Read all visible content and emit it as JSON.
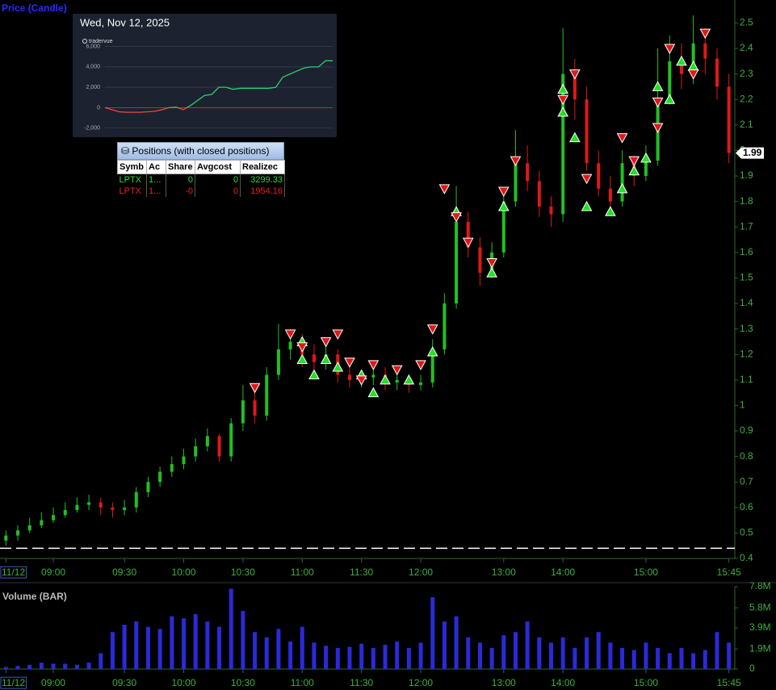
{
  "chart_data": [
    {
      "type": "candlestick",
      "title": "Price (Candle)",
      "categories": [
        "11/12",
        null,
        null,
        null,
        "09:00",
        null,
        null,
        null,
        null,
        null,
        "09:30",
        null,
        null,
        null,
        null,
        "10:00",
        null,
        null,
        null,
        null,
        "10:30",
        null,
        null,
        null,
        null,
        "11:00",
        null,
        null,
        null,
        null,
        "11:30",
        null,
        null,
        null,
        null,
        "12:00",
        null,
        null,
        null,
        null,
        null,
        null,
        "13:00",
        null,
        null,
        null,
        null,
        "14:00",
        null,
        null,
        null,
        null,
        null,
        null,
        "15:00",
        null,
        null,
        null,
        null,
        null,
        null,
        "15:45"
      ],
      "open": [
        0.47,
        0.49,
        0.51,
        0.53,
        0.55,
        0.57,
        0.59,
        0.61,
        0.62,
        0.6,
        0.59,
        0.6,
        0.66,
        0.7,
        0.74,
        0.77,
        0.8,
        0.84,
        0.88,
        0.8,
        0.93,
        1.02,
        0.96,
        1.12,
        1.22,
        1.25,
        1.2,
        1.17,
        1.2,
        1.12,
        1.1,
        1.11,
        1.12,
        1.09,
        1.1,
        1.08,
        1.09,
        1.22,
        1.4,
        1.72,
        1.62,
        1.52,
        1.6,
        1.8,
        1.95,
        1.88,
        1.78,
        1.75,
        2.3,
        2.2,
        1.95,
        1.85,
        1.8,
        1.95,
        1.9,
        1.96,
        2.2,
        2.35,
        2.3,
        2.42,
        2.36,
        2.25
      ],
      "high": [
        0.51,
        0.53,
        0.56,
        0.58,
        0.6,
        0.62,
        0.64,
        0.65,
        0.64,
        0.62,
        0.63,
        0.68,
        0.72,
        0.76,
        0.8,
        0.83,
        0.87,
        0.91,
        0.89,
        0.95,
        1.08,
        1.05,
        1.15,
        1.32,
        1.3,
        1.28,
        1.24,
        1.26,
        1.22,
        1.16,
        1.14,
        1.16,
        1.15,
        1.14,
        1.12,
        1.12,
        1.26,
        1.44,
        1.86,
        1.76,
        1.66,
        1.64,
        1.84,
        2.08,
        2.02,
        1.92,
        1.82,
        2.48,
        2.36,
        2.25,
        2.0,
        1.9,
        2.0,
        1.98,
        2.02,
        2.4,
        2.45,
        2.42,
        2.53,
        2.48,
        2.4,
        2.3
      ],
      "low": [
        0.45,
        0.47,
        0.5,
        0.52,
        0.54,
        0.56,
        0.58,
        0.59,
        0.57,
        0.56,
        0.57,
        0.58,
        0.64,
        0.68,
        0.72,
        0.75,
        0.78,
        0.82,
        0.78,
        0.78,
        0.9,
        0.93,
        0.94,
        1.1,
        1.18,
        1.15,
        1.13,
        1.14,
        1.09,
        1.07,
        1.07,
        1.08,
        1.06,
        1.06,
        1.05,
        1.06,
        1.07,
        1.2,
        1.38,
        1.58,
        1.47,
        1.5,
        1.58,
        1.78,
        1.84,
        1.74,
        1.7,
        1.72,
        2.12,
        1.92,
        1.82,
        1.75,
        1.78,
        1.86,
        1.88,
        1.94,
        2.18,
        2.24,
        2.26,
        2.3,
        2.2,
        1.95
      ],
      "close": [
        0.49,
        0.51,
        0.53,
        0.55,
        0.57,
        0.59,
        0.61,
        0.62,
        0.6,
        0.59,
        0.6,
        0.66,
        0.7,
        0.74,
        0.77,
        0.8,
        0.84,
        0.88,
        0.8,
        0.93,
        1.02,
        0.96,
        1.12,
        1.22,
        1.25,
        1.2,
        1.17,
        1.2,
        1.12,
        1.1,
        1.11,
        1.12,
        1.09,
        1.1,
        1.08,
        1.09,
        1.22,
        1.4,
        1.72,
        1.62,
        1.52,
        1.6,
        1.8,
        1.95,
        1.88,
        1.78,
        1.75,
        2.3,
        2.2,
        1.95,
        1.85,
        1.8,
        1.95,
        1.9,
        1.96,
        2.2,
        2.35,
        2.3,
        2.42,
        2.36,
        2.25,
        1.99
      ],
      "up_color": "#22c022",
      "down_color": "#e01818",
      "ylim": [
        0.4,
        2.59
      ],
      "yticks": [
        0.4,
        0.5,
        0.6,
        0.7,
        0.8,
        0.9,
        1,
        1.1,
        1.2,
        1.3,
        1.4,
        1.5,
        1.6,
        1.7,
        1.8,
        1.9,
        2,
        2.1,
        2.2,
        2.3,
        2.4,
        2.5
      ],
      "reference_line": 0.44,
      "buys": {
        "color": "#22e022",
        "x": [
          25,
          25,
          26,
          27,
          28,
          30,
          31,
          32,
          34,
          36,
          38,
          41,
          42,
          47,
          47,
          48,
          49,
          51,
          52,
          53,
          54,
          55,
          56,
          57,
          58
        ],
        "y": [
          1.25,
          1.18,
          1.12,
          1.18,
          1.15,
          1.12,
          1.05,
          1.1,
          1.1,
          1.21,
          1.76,
          1.52,
          1.78,
          2.15,
          2.24,
          2.05,
          1.78,
          1.76,
          1.85,
          1.92,
          1.97,
          2.25,
          2.2,
          2.35,
          2.33
        ]
      },
      "sells": {
        "color": "#e01818",
        "x": [
          21,
          24,
          25,
          27,
          28,
          29,
          30,
          31,
          33,
          35,
          36,
          37,
          38,
          39,
          41,
          42,
          43,
          47,
          48,
          49,
          52,
          53,
          55,
          55,
          56,
          58,
          59
        ],
        "y": [
          1.07,
          1.28,
          1.23,
          1.25,
          1.28,
          1.17,
          1.1,
          1.16,
          1.14,
          1.16,
          1.3,
          1.85,
          1.74,
          1.64,
          1.56,
          1.84,
          1.96,
          2.2,
          2.3,
          1.89,
          2.05,
          1.96,
          2.09,
          2.19,
          2.4,
          2.3,
          2.46
        ]
      }
    },
    {
      "type": "bar",
      "title": "Volume (BAR)",
      "categories": [
        "11/12",
        null,
        null,
        null,
        "09:00",
        null,
        null,
        null,
        null,
        null,
        "09:30",
        null,
        null,
        null,
        null,
        "10:00",
        null,
        null,
        null,
        null,
        "10:30",
        null,
        null,
        null,
        null,
        "11:00",
        null,
        null,
        null,
        null,
        "11:30",
        null,
        null,
        null,
        null,
        "12:00",
        null,
        null,
        null,
        null,
        null,
        null,
        "13:00",
        null,
        null,
        null,
        null,
        "14:00",
        null,
        null,
        null,
        null,
        null,
        null,
        "15:00",
        null,
        null,
        null,
        null,
        null,
        null,
        "15:45"
      ],
      "values": [
        200000,
        300000,
        400000,
        600000,
        500000,
        500000,
        400000,
        600000,
        1500000,
        3500000,
        4200000,
        4500000,
        4000000,
        3800000,
        5000000,
        4800000,
        5200000,
        4500000,
        4000000,
        7600000,
        5500000,
        3500000,
        3000000,
        3800000,
        2600000,
        4000000,
        2500000,
        2200000,
        2000000,
        2100000,
        2400000,
        2000000,
        2300000,
        2600000,
        2000000,
        2500000,
        6800000,
        4500000,
        5000000,
        3000000,
        2500000,
        2000000,
        3200000,
        3500000,
        4500000,
        3000000,
        2500000,
        3000000,
        2000000,
        3000000,
        3500000,
        2500000,
        2000000,
        1800000,
        2500000,
        2000000,
        1500000,
        2000000,
        1500000,
        1800000,
        3500000,
        2500000
      ],
      "color": "#2a2ad8",
      "ylim": [
        0,
        7800000
      ],
      "yticks": [
        0,
        {
          "value": 1900000,
          "label": "1.9M"
        },
        {
          "value": 3900000,
          "label": "3.9M"
        },
        {
          "value": 5800000,
          "label": "5.8M"
        },
        {
          "value": 7800000,
          "label": "7.8M"
        }
      ]
    },
    {
      "type": "line",
      "title": "Wed, Nov 12, 2025",
      "subtitle": "tradervue",
      "values": [
        0,
        -200,
        -400,
        -450,
        -450,
        -450,
        -400,
        -350,
        -200,
        0,
        50,
        -200,
        200,
        700,
        1200,
        1300,
        2000,
        2000,
        1800,
        1900,
        1900,
        1900,
        1900,
        1900,
        2000,
        3000,
        3300,
        3600,
        3900,
        4000,
        4000,
        4600,
        4600
      ],
      "color_positive": "#2ecc71",
      "color_negative": "#e74c3c",
      "ylim": [
        -2500,
        7000
      ],
      "yticks": [
        {
          "value": -2000,
          "label": "-2,000"
        },
        0,
        {
          "value": 2000,
          "label": "2,000"
        },
        {
          "value": 4000,
          "label": "4,000"
        },
        {
          "value": 6000,
          "label": "6,000"
        }
      ]
    }
  ],
  "positions": {
    "title": "Positions (with closed positions)",
    "columns": [
      "Symb",
      "Ac",
      "Share",
      "Avgcost",
      "Realizec"
    ],
    "rows": [
      [
        "LPTX",
        "1...",
        "0",
        "0",
        "3299.33"
      ],
      [
        "LPTX",
        "1...",
        "-0",
        "0",
        "1954.16"
      ]
    ]
  }
}
